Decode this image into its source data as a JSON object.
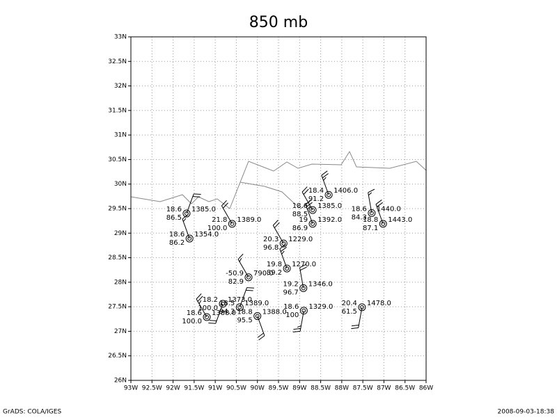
{
  "chart_data": {
    "type": "station",
    "title": "850 mb",
    "footer_left": "GrADS: COLA/IGES",
    "footer_right": "2008-09-03-18:38",
    "xlim": [
      -93,
      -86
    ],
    "xticks": [
      {
        "value": -93,
        "label": "93W"
      },
      {
        "value": -92.5,
        "label": "92.5W"
      },
      {
        "value": -92,
        "label": "92W"
      },
      {
        "value": -91.5,
        "label": "91.5W"
      },
      {
        "value": -91,
        "label": "91W"
      },
      {
        "value": -90.5,
        "label": "90.5W"
      },
      {
        "value": -90,
        "label": "90W"
      },
      {
        "value": -89.5,
        "label": "89.5W"
      },
      {
        "value": -89,
        "label": "89W"
      },
      {
        "value": -88.5,
        "label": "88.5W"
      },
      {
        "value": -88,
        "label": "88W"
      },
      {
        "value": -87.5,
        "label": "87.5W"
      },
      {
        "value": -87,
        "label": "87W"
      },
      {
        "value": -86.5,
        "label": "86.5W"
      },
      {
        "value": -86,
        "label": "86W"
      }
    ],
    "ylim": [
      26,
      33
    ],
    "yticks": [
      {
        "value": 26,
        "label": "26N"
      },
      {
        "value": 26.5,
        "label": "26.5N"
      },
      {
        "value": 27,
        "label": "27N"
      },
      {
        "value": 27.5,
        "label": "27.5N"
      },
      {
        "value": 28,
        "label": "28N"
      },
      {
        "value": 28.5,
        "label": "28.5N"
      },
      {
        "value": 29,
        "label": "29N"
      },
      {
        "value": 29.5,
        "label": "29.5N"
      },
      {
        "value": 30,
        "label": "30N"
      },
      {
        "value": 30.5,
        "label": "30.5N"
      },
      {
        "value": 31,
        "label": "31N"
      },
      {
        "value": 31.5,
        "label": "31.5N"
      },
      {
        "value": 32,
        "label": "32N"
      },
      {
        "value": 32.5,
        "label": "32.5N"
      },
      {
        "value": 33,
        "label": "33N"
      }
    ],
    "grid": true,
    "stations": [
      {
        "lon": -91.68,
        "lat": 29.4,
        "upper_left": 18.6,
        "upper_right": {
          "value": 1385,
          "label": "1385.0"
        },
        "lower_left": 86.5,
        "wind": [
          20,
          20
        ]
      },
      {
        "lon": -91.61,
        "lat": 28.89,
        "upper_left": 18.6,
        "upper_right": {
          "value": 1354,
          "label": "1354.0"
        },
        "lower_left": 86.2,
        "wind": [
          340,
          15
        ]
      },
      {
        "lon": -90.6,
        "lat": 29.19,
        "upper_left": 21.8,
        "upper_right": {
          "value": 1389,
          "label": "1389.0"
        },
        "lower_left": {
          "value": 100,
          "label": "100.0"
        },
        "wind": [
          330,
          20
        ]
      },
      {
        "lon": -88.31,
        "lat": 29.78,
        "upper_left": 18.4,
        "upper_right": {
          "value": 1406,
          "label": "1406.0"
        },
        "lower_left": 91.2,
        "wind": [
          340,
          25
        ]
      },
      {
        "lon": -88.69,
        "lat": 29.47,
        "upper_left": 18.6,
        "upper_right": {
          "value": 1385,
          "label": "1385.0"
        },
        "lower_left": 88.5,
        "wind": [
          330,
          20
        ]
      },
      {
        "lon": -88.69,
        "lat": 29.19,
        "upper_left": 19.0,
        "upper_right": {
          "value": 1392,
          "label": "1392.0"
        },
        "lower_left": 86.9,
        "wind": [
          340,
          25
        ]
      },
      {
        "lon": -87.29,
        "lat": 29.41,
        "upper_left": 18.6,
        "upper_right": {
          "value": 1440,
          "label": "1440.0"
        },
        "lower_left": 84.3,
        "wind": [
          350,
          15
        ]
      },
      {
        "lon": -87.02,
        "lat": 29.19,
        "upper_left": 18.8,
        "upper_right": {
          "value": 1443,
          "label": "1443.0"
        },
        "lower_left": 87.1,
        "wind": [
          340,
          20
        ]
      },
      {
        "lon": -89.38,
        "lat": 28.79,
        "upper_left": 20.3,
        "upper_right": {
          "value": 1229,
          "label": "1229.0"
        },
        "lower_left": 96.8,
        "wind": [
          330,
          20
        ]
      },
      {
        "lon": -89.3,
        "lat": 28.28,
        "upper_left": 19.8,
        "upper_right": {
          "value": 1270,
          "label": "1270.0"
        },
        "lower_left": 89.2,
        "wind": [
          340,
          25
        ]
      },
      {
        "lon": -90.21,
        "lat": 28.1,
        "upper_left": -50.9,
        "upper_right": {
          "value": 790,
          "label": "790.0"
        },
        "lower_left": 82.9,
        "wind": [
          330,
          15
        ]
      },
      {
        "lon": -88.91,
        "lat": 27.88,
        "upper_left": 19.2,
        "upper_right": {
          "value": 1346,
          "label": "1346.0"
        },
        "lower_left": 96.7,
        "wind": [
          350,
          20
        ]
      },
      {
        "lon": -87.52,
        "lat": 27.49,
        "upper_left": 20.4,
        "upper_right": {
          "value": 1478,
          "label": "1478.0"
        },
        "lower_left": 61.5,
        "wind": [
          190,
          20
        ]
      },
      {
        "lon": -90.82,
        "lat": 27.56,
        "upper_left": 18.2,
        "upper_right": {
          "value": 1373,
          "label": "1373.0"
        },
        "lower_left": {
          "value": 100,
          "label": "100.0"
        },
        "wind": [
          200,
          20
        ]
      },
      {
        "lon": -91.2,
        "lat": 27.29,
        "upper_left": 18.6,
        "upper_right": {
          "value": 1388,
          "label": "1388.0"
        },
        "lower_left": {
          "value": 100,
          "label": "100.0"
        },
        "wind": [
          330,
          25
        ]
      },
      {
        "lon": -90.42,
        "lat": 27.49,
        "upper_left": 18.5,
        "upper_right": {
          "value": 1389,
          "label": "1389.0"
        },
        "lower_left": 94.3,
        "wind": [
          20,
          20
        ]
      },
      {
        "lon": -90.0,
        "lat": 27.31,
        "upper_left": 18.8,
        "upper_right": {
          "value": 1388,
          "label": "1388.0"
        },
        "lower_left": 95.5,
        "wind": [
          160,
          20
        ]
      },
      {
        "lon": -88.9,
        "lat": 27.42,
        "upper_left": 18.6,
        "upper_right": {
          "value": 1329,
          "label": "1329.0"
        },
        "lower_left": 100.0,
        "wind": [
          190,
          25
        ]
      }
    ]
  }
}
